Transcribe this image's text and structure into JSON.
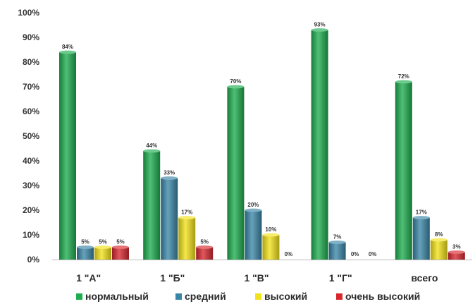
{
  "chart_data": {
    "type": "bar",
    "title": "",
    "xlabel": "",
    "ylabel": "",
    "ylim": [
      0,
      100
    ],
    "y_ticks": [
      "0%",
      "10%",
      "20%",
      "30%",
      "40%",
      "50%",
      "60%",
      "70%",
      "80%",
      "90%",
      "100%"
    ],
    "grid": false,
    "style": "3d-cylinder",
    "legend_position": "bottom",
    "categories": [
      "1 \"А\"",
      "1 \"Б\"",
      "1 \"В\"",
      "1 \"Г\"",
      "всего"
    ],
    "series": [
      {
        "name": "нормальный",
        "color": "#1fad4f",
        "values": [
          84,
          44,
          70,
          93,
          72
        ],
        "labels": [
          "84%",
          "44%",
          "70%",
          "93%",
          "72%"
        ]
      },
      {
        "name": "средний",
        "color": "#3b86a8",
        "values": [
          5,
          33,
          20,
          7,
          17
        ],
        "labels": [
          "5%",
          "33%",
          "20%",
          "7%",
          "17%"
        ]
      },
      {
        "name": "высокий",
        "color": "#f2e21a",
        "values": [
          5,
          17,
          10,
          0,
          8
        ],
        "labels": [
          "5%",
          "17%",
          "10%",
          "0%",
          "8%"
        ]
      },
      {
        "name": "очень высокий",
        "color": "#d7272f",
        "values": [
          5,
          5,
          0,
          0,
          3
        ],
        "labels": [
          "5%",
          "5%",
          "0%",
          "0%",
          "3%"
        ]
      }
    ]
  }
}
